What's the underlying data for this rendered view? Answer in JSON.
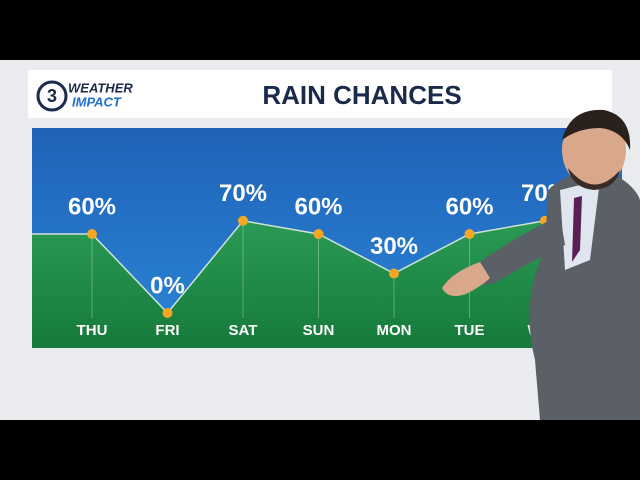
{
  "header": {
    "channel": "3",
    "brand_top": "WEATHER",
    "brand_bottom": "IMPACT"
  },
  "chart_data": {
    "type": "line",
    "title": "RAIN CHANCES",
    "categories": [
      "THU",
      "FRI",
      "SAT",
      "SUN",
      "MON",
      "TUE",
      "WED"
    ],
    "values": [
      60,
      0,
      70,
      60,
      30,
      60,
      70
    ],
    "value_labels": [
      "60%",
      "0%",
      "70%",
      "60%",
      "30%",
      "60%",
      "70%"
    ],
    "ylim": [
      0,
      100
    ],
    "color": "#f5a623"
  }
}
